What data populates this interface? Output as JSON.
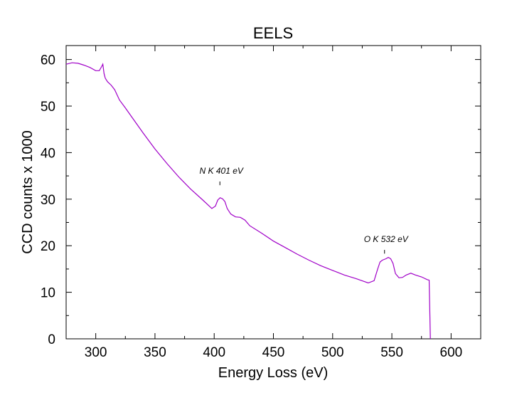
{
  "chart_data": {
    "type": "line",
    "title": "EELS",
    "xlabel": "Energy Loss (eV)",
    "ylabel": "CCD counts x 1000",
    "xlim": [
      275,
      625
    ],
    "ylim": [
      0,
      63
    ],
    "xticks": [
      300,
      350,
      400,
      450,
      500,
      550,
      600
    ],
    "yticks": [
      0,
      10,
      20,
      30,
      40,
      50,
      60
    ],
    "grid": false,
    "line_color": "#a000c8",
    "series": [
      {
        "x": [
          275,
          280,
          285,
          290,
          295,
          300,
          303,
          305,
          306,
          307,
          308,
          310,
          313,
          316,
          320,
          325,
          330,
          340,
          350,
          360,
          370,
          380,
          390,
          398,
          401,
          403,
          405,
          407,
          409,
          411,
          414,
          418,
          422,
          426,
          430,
          440,
          450,
          460,
          470,
          480,
          490,
          500,
          510,
          520,
          530,
          535,
          538,
          540,
          542,
          545,
          547,
          549,
          551,
          553,
          556,
          559,
          562,
          566,
          570,
          575,
          580,
          581.5,
          582,
          582.5
        ],
        "y": [
          59,
          59.3,
          59.2,
          58.8,
          58.3,
          57.6,
          57.6,
          58.5,
          59.0,
          57.0,
          56.0,
          55.2,
          54.5,
          53.5,
          51.3,
          49.6,
          47.8,
          44.2,
          40.8,
          37.7,
          34.8,
          32.2,
          29.9,
          28.0,
          28.5,
          29.8,
          30.3,
          30.1,
          29.5,
          28.0,
          26.8,
          26.2,
          26.1,
          25.5,
          24.3,
          22.7,
          21.0,
          19.6,
          18.2,
          16.9,
          15.7,
          14.7,
          13.7,
          12.9,
          12.0,
          12.5,
          15.0,
          16.5,
          16.9,
          17.2,
          17.5,
          17.2,
          16.2,
          14.0,
          13.1,
          13.2,
          13.7,
          14.1,
          13.7,
          13.3,
          12.7,
          12.6,
          6.0,
          0
        ]
      }
    ],
    "annotations": [
      {
        "text": "N K 401 eV",
        "x": 406,
        "y": 35.5,
        "marker_y": [
          33,
          33.8
        ]
      },
      {
        "text": "O K 532 eV",
        "x": 545,
        "y": 20.8,
        "marker_y": [
          18.3,
          19.1
        ]
      }
    ]
  }
}
